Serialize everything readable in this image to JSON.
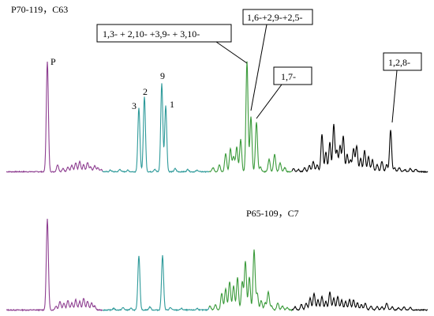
{
  "chart_data": {
    "type": "line",
    "colors": {
      "segment_1": "#8e3f91",
      "segment_2": "#2e9a9a",
      "segment_3": "#3a9a3a",
      "segment_4": "#000000"
    },
    "grid": false,
    "traces": [
      {
        "name": "P70-119，C63",
        "segments": [
          "segment_1",
          "segment_2",
          "segment_3",
          "segment_4"
        ],
        "peaks": [
          {
            "label": "P",
            "x": 60,
            "y": 100
          },
          {
            "label": "3",
            "x": 176,
            "y": 58
          },
          {
            "label": "2",
            "x": 183,
            "y": 68
          },
          {
            "label": "9",
            "x": 205,
            "y": 80
          },
          {
            "label": "1",
            "x": 210,
            "y": 60
          },
          {
            "label": "",
            "x": 313,
            "y": 100
          },
          {
            "label": "",
            "x": 318,
            "y": 50
          },
          {
            "label": "",
            "x": 325,
            "y": 45
          },
          {
            "label": "",
            "x": 495,
            "y": 38
          }
        ]
      },
      {
        "name": "P65-109，C7",
        "segments": [
          "segment_1",
          "segment_2",
          "segment_3",
          "segment_4"
        ],
        "peaks": [
          {
            "label": "",
            "x": 60,
            "y": 100
          },
          {
            "label": "",
            "x": 176,
            "y": 60
          },
          {
            "label": "",
            "x": 206,
            "y": 60
          },
          {
            "label": "",
            "x": 322,
            "y": 66
          }
        ]
      }
    ],
    "annotations": [
      {
        "text": "1,3- + 2,10- +3,9- + 3,10-"
      },
      {
        "text": "1,6-+2,9-+2,5-"
      },
      {
        "text": "1,7-"
      },
      {
        "text": "1,2,8-"
      }
    ]
  }
}
